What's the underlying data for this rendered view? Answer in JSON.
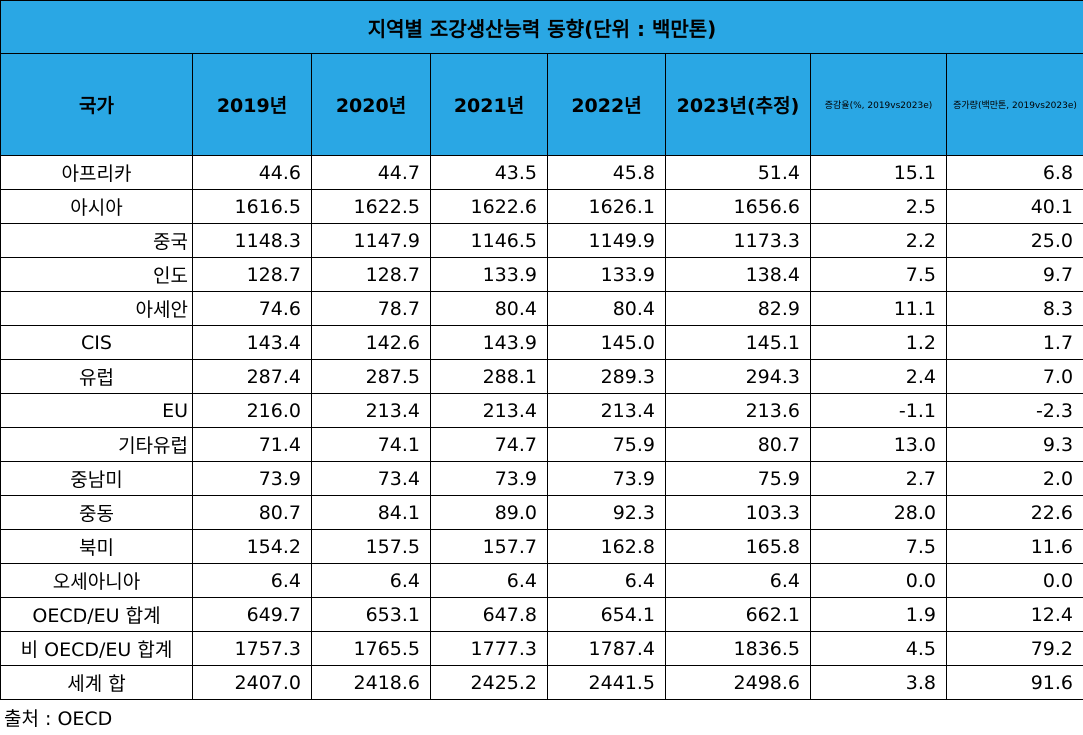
{
  "title": "지역별 조강생산능력 동향(단위 : 백만톤)",
  "table": {
    "header": [
      "국가",
      "2019년",
      "2020년",
      "2021년",
      "2022년",
      "2023년(추정)",
      "증감율(%, 2019vs2023e)",
      "증가량(백만톤, 2019vs2023e)"
    ],
    "rows": [
      [
        "아프리카",
        "44.6",
        "44.7",
        "43.5",
        "45.8",
        "51.4",
        "15.1",
        "6.8"
      ],
      [
        "아시아",
        "1616.5",
        "1622.5",
        "1622.6",
        "1626.1",
        "1656.6",
        "2.5",
        "40.1"
      ],
      [
        "중국",
        "1148.3",
        "1147.9",
        "1146.5",
        "1149.9",
        "1173.3",
        "2.2",
        "25.0"
      ],
      [
        "인도",
        "128.7",
        "128.7",
        "133.9",
        "133.9",
        "138.4",
        "7.5",
        "9.7"
      ],
      [
        "아세안",
        "74.6",
        "78.7",
        "80.4",
        "80.4",
        "82.9",
        "11.1",
        "8.3"
      ],
      [
        "CIS",
        "143.4",
        "142.6",
        "143.9",
        "145.0",
        "145.1",
        "1.2",
        "1.7"
      ],
      [
        "유럽",
        "287.4",
        "287.5",
        "288.1",
        "289.3",
        "294.3",
        "2.4",
        "7.0"
      ],
      [
        "EU",
        "216.0",
        "213.4",
        "213.4",
        "213.4",
        "213.6",
        "-1.1",
        "-2.3"
      ],
      [
        "기타유럽",
        "71.4",
        "74.1",
        "74.7",
        "75.9",
        "80.7",
        "13.0",
        "9.3"
      ],
      [
        "중남미",
        "73.9",
        "73.4",
        "73.9",
        "73.9",
        "75.9",
        "2.7",
        "2.0"
      ],
      [
        "중동",
        "80.7",
        "84.1",
        "89.0",
        "92.3",
        "103.3",
        "28.0",
        "22.6"
      ],
      [
        "북미",
        "154.2",
        "157.5",
        "157.7",
        "162.8",
        "165.8",
        "7.5",
        "11.6"
      ],
      [
        "오세아니아",
        "6.4",
        "6.4",
        "6.4",
        "6.4",
        "6.4",
        "0.0",
        "0.0"
      ],
      [
        "OECD/EU 합계",
        "649.7",
        "653.1",
        "647.8",
        "654.1",
        "662.1",
        "1.9",
        "12.4"
      ],
      [
        "비 OECD/EU 합계",
        "1757.3",
        "1765.5",
        "1777.3",
        "1787.4",
        "1836.5",
        "4.5",
        "79.2"
      ],
      [
        "세계 합",
        "2407.0",
        "2418.6",
        "2425.2",
        "2441.5",
        "2498.6",
        "3.8",
        "91.6"
      ]
    ]
  },
  "source": "출처 : OECD"
}
